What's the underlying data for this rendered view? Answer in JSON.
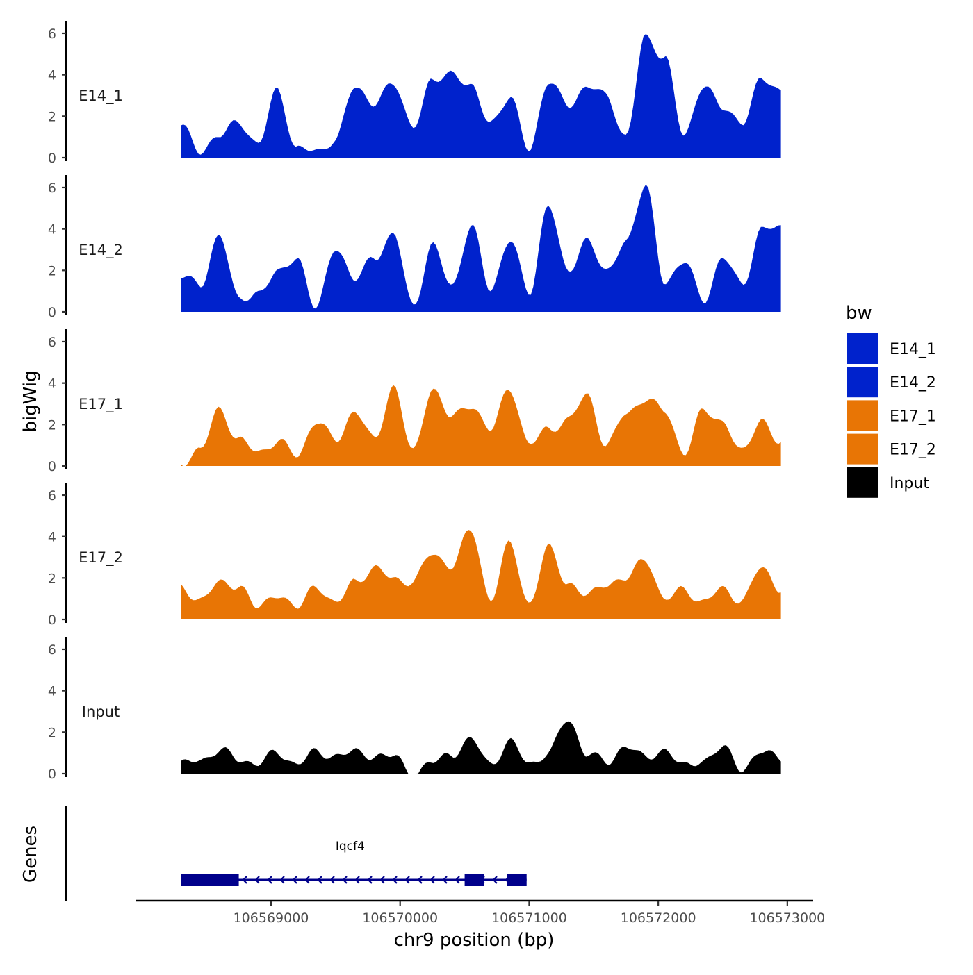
{
  "chart_data": {
    "type": "area",
    "title": "",
    "ylabel": "bigWig",
    "genes_label": "Genes",
    "xlabel": "chr9 position (bp)",
    "xlim": [
      106567950,
      106573200
    ],
    "xticks": [
      106569000,
      106570000,
      106571000,
      106572000,
      106573000
    ],
    "xtick_labels": [
      "106569000",
      "106570000",
      "106571000",
      "106572000",
      "106573000"
    ],
    "ylim": [
      0,
      6.2
    ],
    "yticks": [
      0,
      2,
      4,
      6
    ],
    "ytick_labels": [
      "0",
      "2",
      "4",
      "6"
    ],
    "legend": {
      "title": "bw",
      "position": "right",
      "entries": [
        {
          "label": "E14_1",
          "color": "#0022CC"
        },
        {
          "label": "E14_2",
          "color": "#0022CC"
        },
        {
          "label": "E17_1",
          "color": "#E87505"
        },
        {
          "label": "E17_2",
          "color": "#E87505"
        },
        {
          "label": "Input",
          "color": "#000000"
        }
      ]
    },
    "x_grid": [
      106568300,
      106568450,
      106568600,
      106568750,
      106568900,
      106569050,
      106569200,
      106569350,
      106569500,
      106569650,
      106569800,
      106569950,
      106570100,
      106570250,
      106570400,
      106570550,
      106570700,
      106570850,
      106571000,
      106571150,
      106571300,
      106571450,
      106571600,
      106571750,
      106571900,
      106572050,
      106572200,
      106572350,
      106572500,
      106572650,
      106572800,
      106572950
    ],
    "series": [
      {
        "name": "E14_1",
        "color": "#0022CC",
        "values": [
          1.5,
          0.4,
          1.0,
          1.8,
          0.6,
          3.3,
          0.4,
          0.3,
          0.9,
          3.4,
          2.7,
          3.5,
          1.6,
          3.6,
          4.2,
          3.3,
          1.8,
          2.8,
          0.5,
          3.6,
          2.6,
          3.4,
          3.0,
          1.0,
          5.8,
          4.9,
          1.0,
          3.6,
          2.3,
          1.8,
          3.7,
          3.3
        ]
      },
      {
        "name": "E14_2",
        "color": "#0022CC",
        "values": [
          1.8,
          1.2,
          3.8,
          0.5,
          1.0,
          1.8,
          2.7,
          0.1,
          3.2,
          1.5,
          2.7,
          3.7,
          0.3,
          3.2,
          1.2,
          4.2,
          1.0,
          3.6,
          0.8,
          5.3,
          1.8,
          3.6,
          1.8,
          3.5,
          6.0,
          1.5,
          2.4,
          0.6,
          2.6,
          1.3,
          4.0,
          4.0
        ]
      },
      {
        "name": "E17_1",
        "color": "#E87505",
        "values": [
          0.2,
          0.7,
          2.8,
          1.2,
          0.7,
          1.2,
          0.5,
          2.2,
          1.2,
          2.7,
          1.2,
          3.9,
          0.6,
          3.8,
          2.3,
          3.0,
          1.7,
          3.8,
          1.0,
          1.8,
          2.2,
          3.4,
          1.0,
          2.5,
          3.3,
          2.6,
          0.7,
          2.6,
          2.2,
          0.6,
          2.3,
          1.0
        ]
      },
      {
        "name": "E17_2",
        "color": "#E87505",
        "values": [
          1.5,
          1.0,
          1.7,
          1.7,
          0.5,
          1.3,
          0.5,
          1.7,
          0.7,
          1.9,
          2.4,
          2.0,
          1.8,
          3.2,
          2.6,
          4.3,
          1.0,
          3.6,
          0.8,
          3.4,
          1.8,
          1.1,
          1.8,
          1.9,
          3.0,
          0.9,
          1.5,
          0.8,
          1.5,
          0.9,
          2.5,
          1.5
        ]
      },
      {
        "name": "Input",
        "color": "#000000",
        "values": [
          0.4,
          0.7,
          1.1,
          0.7,
          0.5,
          1.0,
          0.5,
          1.0,
          0.9,
          1.0,
          0.9,
          0.8,
          0.0,
          0.5,
          1.0,
          1.6,
          0.5,
          1.5,
          0.5,
          1.0,
          2.6,
          1.0,
          0.5,
          1.4,
          0.7,
          1.2,
          0.3,
          0.7,
          1.2,
          0.3,
          1.0,
          0.8
        ]
      }
    ],
    "gene": {
      "name": "Iqcf4",
      "start": 106568300,
      "end": 106570980,
      "strand": "-",
      "color": "#00008B",
      "exons": [
        [
          106568300,
          106568750
        ],
        [
          106570500,
          106570650
        ],
        [
          106570830,
          106570980
        ]
      ]
    }
  }
}
